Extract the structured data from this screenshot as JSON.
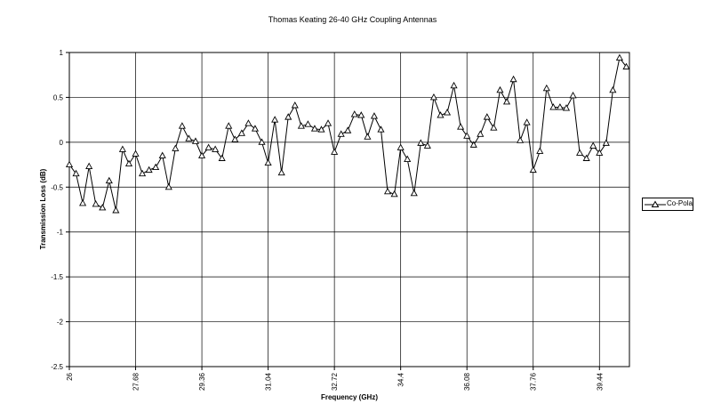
{
  "chart_data": {
    "type": "line",
    "title": "Thomas Keating 26-40 GHz Coupling Antennas",
    "xlabel": "Frequency (GHz)",
    "ylabel": "Transmission Loss (dB)",
    "ylim": [
      -2.5,
      1
    ],
    "yticks": [
      "1",
      "0.5",
      "0",
      "-0.5",
      "-1",
      "-1.5",
      "-2",
      "-2.5"
    ],
    "xlim": [
      26,
      40.2
    ],
    "xticks": [
      "26",
      "27.68",
      "29.36",
      "31.04",
      "32.72",
      "34.4",
      "36.08",
      "37.76",
      "39.44"
    ],
    "grid": true,
    "legend_position": "right",
    "series": [
      {
        "name": "Co-Pola",
        "color": "#000000",
        "x": [
          26.0,
          26.17,
          26.34,
          26.5,
          26.67,
          26.84,
          27.01,
          27.18,
          27.35,
          27.51,
          27.68,
          27.85,
          28.02,
          28.19,
          28.36,
          28.52,
          28.69,
          28.86,
          29.03,
          29.2,
          29.36,
          29.53,
          29.7,
          29.87,
          30.04,
          30.2,
          30.37,
          30.54,
          30.71,
          30.88,
          31.04,
          31.21,
          31.38,
          31.55,
          31.72,
          31.88,
          32.05,
          32.22,
          32.39,
          32.56,
          32.72,
          32.89,
          33.06,
          33.23,
          33.4,
          33.56,
          33.73,
          33.9,
          34.07,
          34.24,
          34.4,
          34.57,
          34.74,
          34.91,
          35.08,
          35.24,
          35.41,
          35.58,
          35.75,
          35.92,
          36.08,
          36.25,
          36.42,
          36.59,
          36.76,
          36.92,
          37.09,
          37.26,
          37.43,
          37.6,
          37.76,
          37.93,
          38.1,
          38.27,
          38.44,
          38.6,
          38.77,
          38.94,
          39.11,
          39.28,
          39.44,
          39.61,
          39.78,
          39.95,
          40.12
        ],
        "values": [
          -0.25,
          -0.35,
          -0.68,
          -0.27,
          -0.69,
          -0.73,
          -0.43,
          -0.76,
          -0.08,
          -0.24,
          -0.13,
          -0.35,
          -0.31,
          -0.28,
          -0.15,
          -0.5,
          -0.07,
          0.18,
          0.04,
          0.01,
          -0.15,
          -0.06,
          -0.08,
          -0.18,
          0.18,
          0.03,
          0.1,
          0.21,
          0.15,
          0.0,
          -0.23,
          0.25,
          -0.34,
          0.28,
          0.41,
          0.18,
          0.2,
          0.15,
          0.14,
          0.21,
          -0.11,
          0.09,
          0.13,
          0.31,
          0.3,
          0.06,
          0.29,
          0.14,
          -0.55,
          -0.58,
          -0.06,
          -0.19,
          -0.57,
          -0.01,
          -0.04,
          0.5,
          0.3,
          0.33,
          0.63,
          0.17,
          0.07,
          -0.03,
          0.09,
          0.28,
          0.16,
          0.58,
          0.45,
          0.7,
          0.02,
          0.22,
          -0.31,
          -0.1,
          0.6,
          0.39,
          0.39,
          0.38,
          0.52,
          -0.12,
          -0.18,
          -0.04,
          -0.12,
          -0.01,
          0.58,
          0.94,
          0.84
        ]
      }
    ]
  }
}
